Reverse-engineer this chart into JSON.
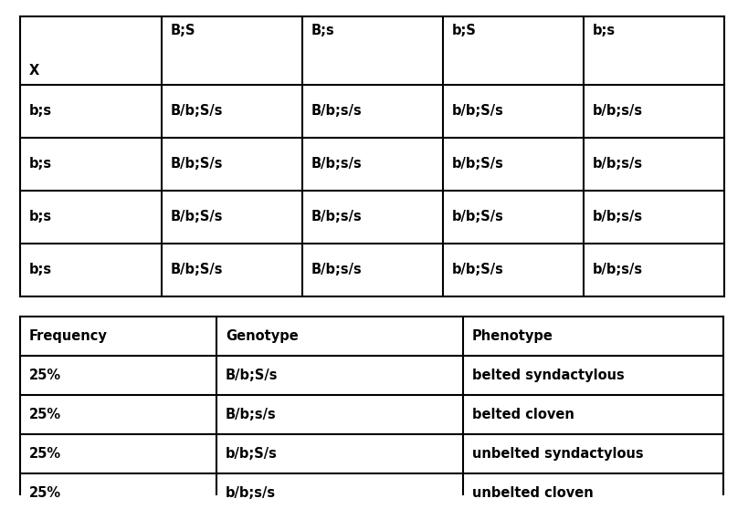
{
  "punnett_header_row": [
    "",
    "B;S",
    "B;s",
    "b;S",
    "b;s"
  ],
  "punnett_col0_label": "X",
  "punnett_rows": [
    [
      "b;s",
      "B/b;S/s",
      "B/b;s/s",
      "b/b;S/s",
      "b/b;s/s"
    ],
    [
      "b;s",
      "B/b;S/s",
      "B/b;s/s",
      "b/b;S/s",
      "b/b;s/s"
    ],
    [
      "b;s",
      "B/b;S/s",
      "B/b;s/s",
      "b/b;S/s",
      "b/b;s/s"
    ],
    [
      "b;s",
      "B/b;S/s",
      "B/b;s/s",
      "b/b;S/s",
      "b/b;s/s"
    ]
  ],
  "summary_headers": [
    "Frequency",
    "Genotype",
    "Phenotype"
  ],
  "summary_rows": [
    [
      "25%",
      "B/b;S/s",
      "belted syndactylous"
    ],
    [
      "25%",
      "B/b;s/s",
      "belted cloven"
    ],
    [
      "25%",
      "b/b;S/s",
      "unbelted syndactylous"
    ],
    [
      "25%",
      "b/b;s/s",
      "unbelted cloven"
    ]
  ],
  "background_color": "#ffffff",
  "line_color": "#000000",
  "text_color": "#000000",
  "font_size": 10.5,
  "bold_font": "bold"
}
